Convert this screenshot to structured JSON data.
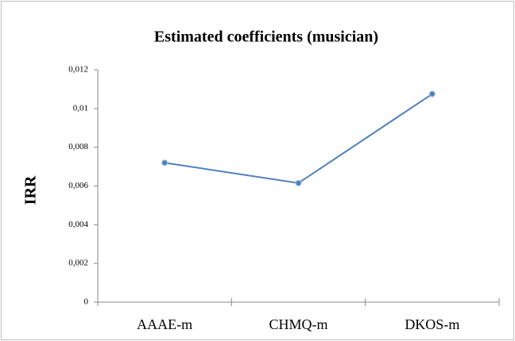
{
  "chart_data": {
    "type": "line",
    "title": "Estimated coefficients (musician)",
    "y_label": "IRR",
    "categories": [
      "AAAE-m",
      "CHMQ-m",
      "DKOS-m"
    ],
    "series": [
      {
        "color": "#4f81bd",
        "values": [
          0.0072,
          0.00615,
          0.01075
        ]
      }
    ],
    "ylim": [
      0,
      0.012
    ],
    "yticks": [
      0,
      {
        "value": 0.002,
        "label": "0,002"
      },
      {
        "value": 0.004,
        "label": "0,004"
      },
      {
        "value": 0.006,
        "label": "0,006"
      },
      {
        "value": 0.008,
        "label": "0,008"
      },
      {
        "value": 0.01,
        "label": "0,01"
      },
      {
        "value": 0.012,
        "label": "0,012"
      }
    ],
    "grid": false
  }
}
